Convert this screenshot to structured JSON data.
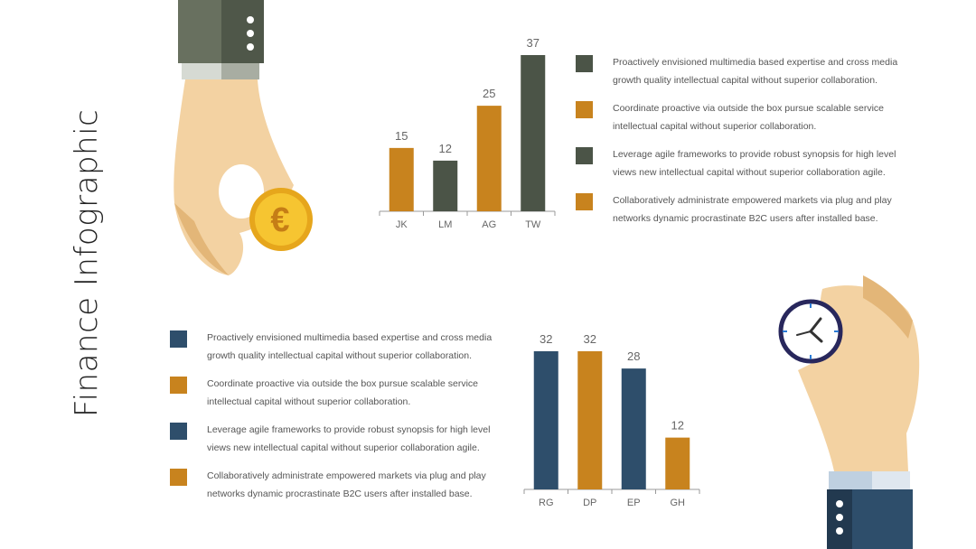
{
  "slide": {
    "title": "Finance Infographic"
  },
  "colors": {
    "orange": "#c8831e",
    "dark_gray": "#4b5447",
    "navy": "#2e4e6b",
    "axis": "#999999",
    "label": "#666666"
  },
  "legend_top": [
    {
      "color": "#4b5447",
      "text": "Proactively envisioned multimedia based expertise and cross media growth quality intellectual capital without superior collaboration."
    },
    {
      "color": "#c8831e",
      "text": "Coordinate proactive via outside the box pursue scalable service intellectual capital without superior collaboration."
    },
    {
      "color": "#4b5447",
      "text": "Leverage agile frameworks to provide robust synopsis for high level views new intellectual capital without superior collaboration agile."
    },
    {
      "color": "#c8831e",
      "text": "Collaboratively administrate empowered markets via plug and play networks dynamic procrastinate B2C users after installed base."
    }
  ],
  "legend_bottom": [
    {
      "color": "#2e4e6b",
      "text": "Proactively envisioned multimedia based expertise and cross media growth quality intellectual capital without superior collaboration."
    },
    {
      "color": "#c8831e",
      "text": "Coordinate proactive via outside the box pursue scalable service intellectual capital without superior collaboration."
    },
    {
      "color": "#2e4e6b",
      "text": "Leverage agile frameworks to provide robust synopsis for high level views new intellectual capital without superior collaboration agile."
    },
    {
      "color": "#c8831e",
      "text": "Collaboratively administrate empowered markets via plug and play networks dynamic procrastinate B2C users after installed base."
    }
  ],
  "chart_data": [
    {
      "type": "bar",
      "categories": [
        "JK",
        "LM",
        "AG",
        "TW"
      ],
      "values": [
        15,
        12,
        25,
        37
      ],
      "colors": [
        "#c8831e",
        "#4b5447",
        "#c8831e",
        "#4b5447"
      ],
      "ylim": [
        0,
        37
      ],
      "grid": false,
      "data_labels": true
    },
    {
      "type": "bar",
      "categories": [
        "RG",
        "DP",
        "EP",
        "GH"
      ],
      "values": [
        32,
        32,
        28,
        12
      ],
      "colors": [
        "#2e4e6b",
        "#c8831e",
        "#2e4e6b",
        "#c8831e"
      ],
      "ylim": [
        0,
        32
      ],
      "grid": false,
      "data_labels": true
    }
  ],
  "icons": [
    "hand-holding-coin-icon",
    "euro-coin-icon",
    "hand-holding-clock-icon",
    "clock-icon"
  ]
}
